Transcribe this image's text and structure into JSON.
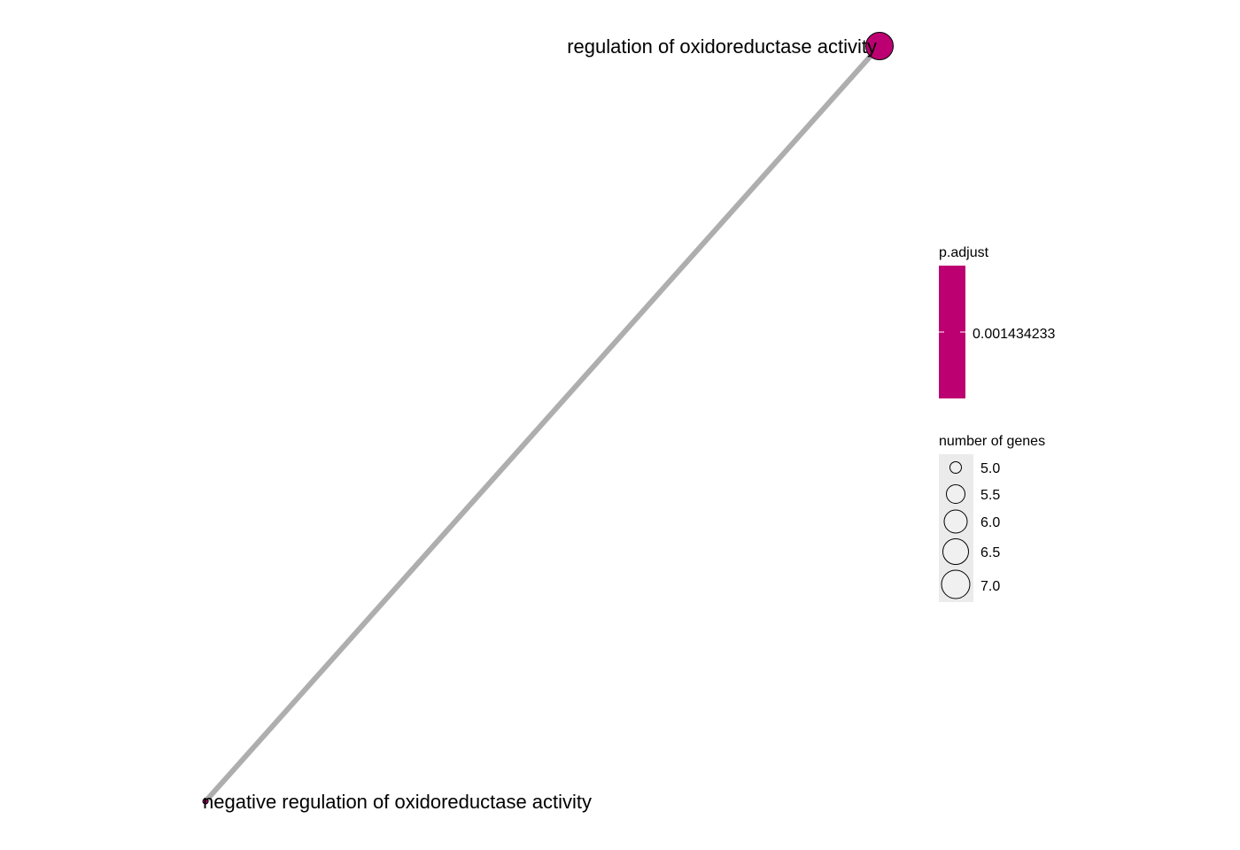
{
  "nodes": [
    {
      "id": "n1",
      "label": "regulation of oxidoreductase activity",
      "p_adjust": 0.001434233,
      "gene_count": 6,
      "color": "#BC0071"
    },
    {
      "id": "n2",
      "label": "negative regulation of oxidoreductase activity",
      "gene_count": 5
    }
  ],
  "edges": [
    {
      "source": "n1",
      "target": "n2",
      "color": "#AEAEAE"
    }
  ],
  "legend": {
    "color": {
      "title": "p.adjust",
      "label": "0.001434233",
      "color": "#BC0071"
    },
    "size": {
      "title": "number of genes",
      "items": [
        {
          "label": "5.0",
          "value": 5.0
        },
        {
          "label": "5.5",
          "value": 5.5
        },
        {
          "label": "6.0",
          "value": 6.0
        },
        {
          "label": "6.5",
          "value": 6.5
        },
        {
          "label": "7.0",
          "value": 7.0
        }
      ],
      "fill": "#F0F0F0",
      "key_background": "#EBEBEB"
    }
  }
}
